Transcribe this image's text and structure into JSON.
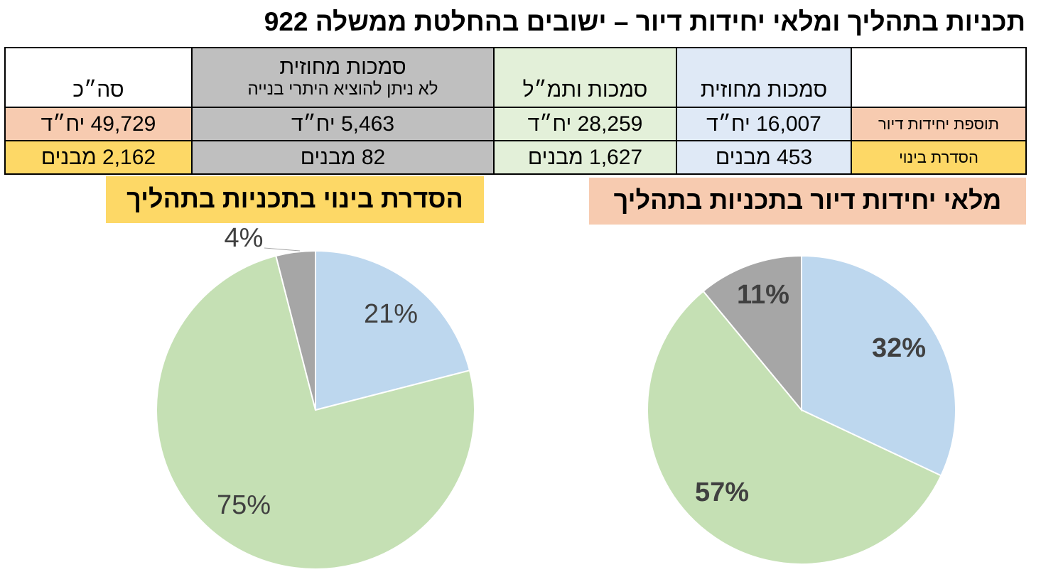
{
  "title": "תכניות בתהליך ומלאי יחידות דיור – ישובים בהחלטת ממשלה 922",
  "table": {
    "headers": {
      "col1": "סמכות מחוזית",
      "col2": "סמכות ותמ״ל",
      "col3_main": "סמכות מחוזית",
      "col3_sub": "לא ניתן להוציא היתרי בנייה",
      "col4": "סה״כ"
    },
    "rows": [
      {
        "label": "תוספת יחידות דיור",
        "values": [
          "16,007 יח״ד",
          "28,259 יח״ד",
          "5,463 יח״ד",
          "49,729 יח״ד"
        ]
      },
      {
        "label": "הסדרת בינוי",
        "values": [
          "453 מבנים",
          "1,627 מבנים",
          "82 מבנים",
          "2,162 מבנים"
        ]
      }
    ]
  },
  "colors": {
    "blue": "#bdd7ee",
    "green": "#c5e0b4",
    "gray": "#a6a6a6",
    "orange": "#f7cbb0",
    "yellow": "#fdd866"
  },
  "chart_data": [
    {
      "type": "pie",
      "title": "מלאי יחידות דיור בתכניות בתהליך",
      "slices": [
        {
          "label": "32%",
          "value": 32,
          "color": "#bdd7ee"
        },
        {
          "label": "57%",
          "value": 57,
          "color": "#c5e0b4"
        },
        {
          "label": "11%",
          "value": 11,
          "color": "#a6a6a6"
        }
      ]
    },
    {
      "type": "pie",
      "title": "הסדרת בינוי בתכניות בתהליך",
      "slices": [
        {
          "label": "21%",
          "value": 21,
          "color": "#bdd7ee"
        },
        {
          "label": "75%",
          "value": 75,
          "color": "#c5e0b4"
        },
        {
          "label": "4%",
          "value": 4,
          "color": "#a6a6a6"
        }
      ]
    }
  ]
}
